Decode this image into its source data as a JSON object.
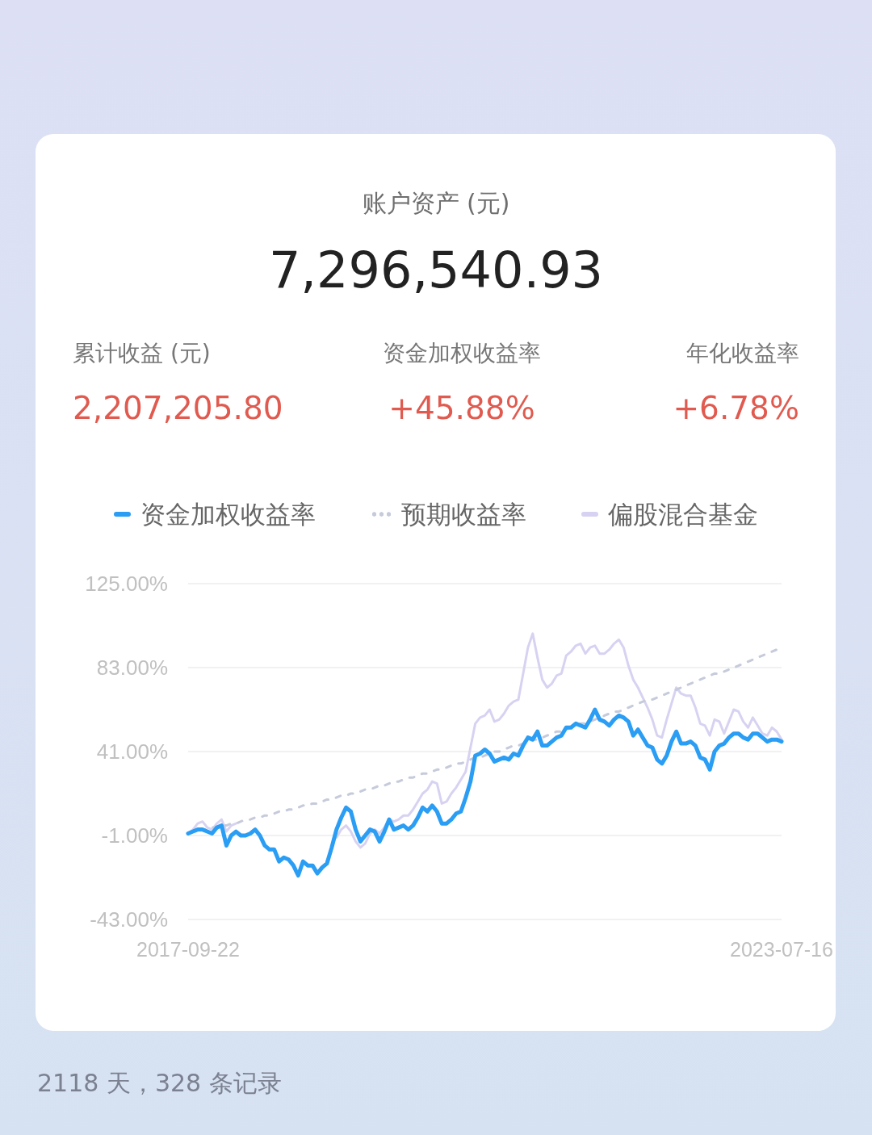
{
  "chart_data": {
    "type": "line",
    "title": "账户资产 (元)",
    "subtitle": "7,296,540.93",
    "annotations": [
      "累计收益 (元)",
      "2,207,205.80",
      "资金加权收益率",
      "+45.88%",
      "年化收益率",
      "+6.78%",
      "2118 天，328 条记录"
    ],
    "categories": [
      "2017-09-22",
      null,
      null,
      null,
      null,
      null,
      null,
      null,
      null,
      null,
      null,
      null,
      null,
      null,
      null,
      null,
      null,
      null,
      null,
      null,
      null,
      null,
      null,
      null,
      null,
      null,
      null,
      null,
      null,
      null,
      null,
      null,
      null,
      null,
      null,
      null,
      null,
      null,
      null,
      null,
      null,
      null,
      null,
      null,
      null,
      null,
      null,
      null,
      null,
      null,
      null,
      null,
      null,
      null,
      null,
      null,
      null,
      null,
      null,
      null,
      null,
      null,
      null,
      null,
      null,
      null,
      null,
      null,
      null,
      null,
      null,
      null,
      null,
      null,
      null,
      null,
      null,
      null,
      null,
      null,
      null,
      null,
      null,
      null,
      null,
      null,
      null,
      null,
      null,
      null,
      null,
      null,
      null,
      null,
      null,
      null,
      null,
      null,
      null,
      null,
      null,
      null,
      null,
      null,
      null,
      null,
      null,
      null,
      null,
      null,
      null,
      null,
      null,
      null,
      null,
      null,
      null,
      null,
      null,
      null,
      null,
      null,
      null,
      null,
      "2023-07-16"
    ],
    "series": [
      {
        "name": "资金加权收益率",
        "color": "#2a9df4",
        "line_style": "solid",
        "values": [
          0,
          1,
          2,
          2,
          1,
          0,
          3,
          4,
          -6,
          -1,
          1,
          -1,
          -1,
          0,
          2,
          -1,
          -6,
          -8,
          -8,
          -14,
          -12,
          -13,
          -16,
          -21,
          -14,
          -16,
          -16,
          -20,
          -17,
          -15,
          -7,
          2,
          8,
          13,
          11,
          2,
          -4,
          -1,
          2,
          1,
          -4,
          1,
          7,
          2,
          3,
          4,
          2,
          4,
          8,
          13,
          11,
          14,
          11,
          5,
          5,
          7,
          10,
          11,
          18,
          26,
          39,
          40,
          42,
          40,
          36,
          37,
          38,
          37,
          40,
          39,
          44,
          48,
          47,
          51,
          44,
          44,
          46,
          48,
          49,
          53,
          53,
          55,
          54,
          53,
          57,
          62,
          57,
          56,
          54,
          57,
          59,
          58,
          56,
          49,
          52,
          48,
          44,
          43,
          37,
          35,
          39,
          46,
          51,
          45,
          45,
          46,
          44,
          38,
          37,
          32,
          41,
          44,
          45,
          48,
          50,
          50,
          48,
          47,
          50,
          50,
          48,
          46,
          47,
          47,
          46
        ]
      },
      {
        "name": "预期收益率",
        "color": "#c6cbdb",
        "line_style": "dashed",
        "values": [
          0,
          1,
          1,
          2,
          2,
          3,
          3,
          4,
          4,
          5,
          5,
          6,
          7,
          7,
          8,
          8,
          9,
          9,
          10,
          11,
          11,
          12,
          12,
          13,
          14,
          14,
          15,
          15,
          16,
          17,
          17,
          18,
          19,
          19,
          20,
          20,
          21,
          22,
          22,
          23,
          24,
          24,
          25,
          26,
          26,
          27,
          28,
          28,
          29,
          30,
          30,
          31,
          32,
          32,
          33,
          34,
          35,
          35,
          36,
          37,
          38,
          38,
          39,
          40,
          41,
          41,
          42,
          43,
          44,
          44,
          45,
          46,
          47,
          47,
          48,
          49,
          50,
          51,
          51,
          52,
          53,
          54,
          55,
          55,
          56,
          57,
          58,
          59,
          60,
          61,
          61,
          62,
          63,
          64,
          65,
          66,
          67,
          67,
          68,
          69,
          70,
          71,
          72,
          73,
          74,
          75,
          76,
          77,
          78,
          79,
          80,
          80,
          81,
          82,
          83,
          84,
          85,
          86,
          87,
          88,
          89,
          90,
          91,
          92,
          93
        ]
      },
      {
        "name": "偏股混合基金",
        "color": "#d8d2f2",
        "line_style": "solid",
        "values": [
          0,
          2,
          5,
          6,
          3,
          2,
          5,
          7,
          1,
          4,
          5,
          null,
          null,
          null,
          null,
          null,
          null,
          null,
          null,
          null,
          null,
          null,
          null,
          null,
          null,
          null,
          null,
          null,
          null,
          null,
          null,
          -2,
          2,
          4,
          1,
          -4,
          -7,
          -5,
          0,
          2,
          0,
          3,
          7,
          6,
          7,
          9,
          9,
          12,
          16,
          20,
          22,
          26,
          25,
          15,
          16,
          20,
          23,
          27,
          31,
          43,
          55,
          58,
          59,
          62,
          56,
          57,
          60,
          64,
          66,
          67,
          80,
          93,
          100,
          88,
          77,
          73,
          75,
          79,
          80,
          89,
          91,
          94,
          95,
          90,
          93,
          94,
          90,
          90,
          92,
          95,
          97,
          93,
          84,
          77,
          73,
          68,
          63,
          57,
          49,
          48,
          57,
          65,
          73,
          70,
          69,
          69,
          63,
          55,
          54,
          49,
          57,
          56,
          50,
          56,
          62,
          61,
          56,
          53,
          58,
          54,
          50,
          49,
          53,
          51,
          47
        ]
      }
    ],
    "ylim": [
      -43,
      125
    ],
    "yticks": [
      {
        "value": -43,
        "label": "-43.00%"
      },
      {
        "value": -1,
        "label": "-1.00%"
      },
      {
        "value": 41,
        "label": "41.00%"
      },
      {
        "value": 83,
        "label": "83.00%"
      },
      {
        "value": 125,
        "label": "125.00%"
      }
    ],
    "grid": "y",
    "legend": "top"
  }
}
